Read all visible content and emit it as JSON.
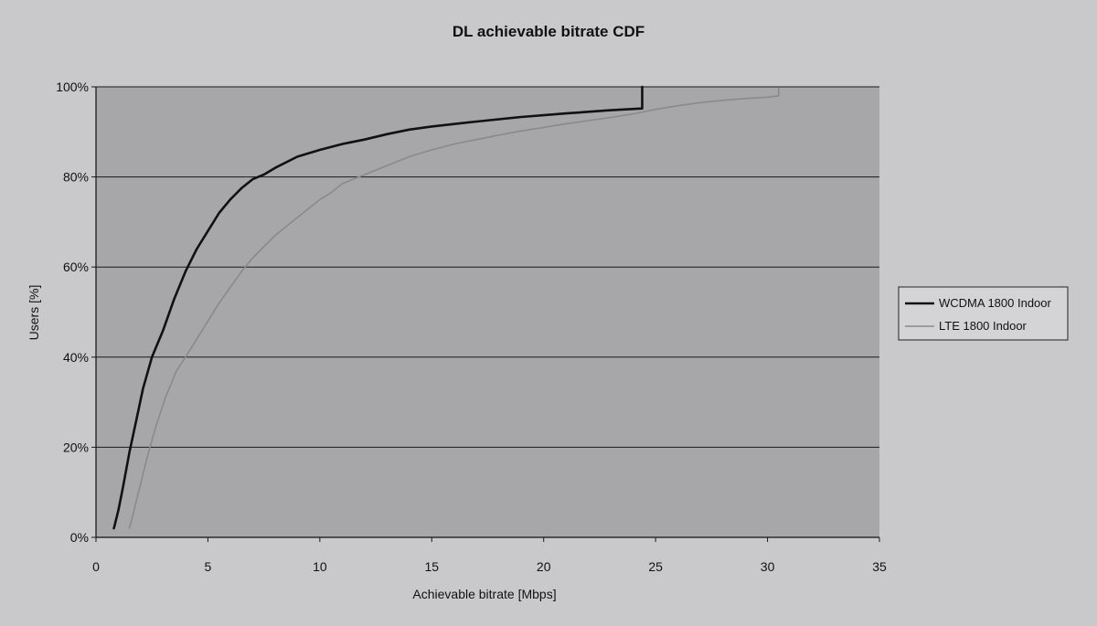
{
  "chart_data": {
    "type": "line",
    "title": "DL achievable bitrate CDF",
    "xlabel": "Achievable bitrate [Mbps]",
    "ylabel": "Users [%]",
    "xlim": [
      0,
      35
    ],
    "ylim": [
      0,
      100
    ],
    "xticks": [
      "0",
      "5",
      "10",
      "15",
      "20",
      "25",
      "30",
      "35"
    ],
    "xtick_values": [
      0,
      5,
      10,
      15,
      20,
      25,
      30,
      35
    ],
    "yticks": [
      "0%",
      "20%",
      "40%",
      "60%",
      "80%",
      "100%"
    ],
    "ytick_values": [
      0,
      20,
      40,
      60,
      80,
      100
    ],
    "grid": "horizontal",
    "legend_position": "right",
    "series": [
      {
        "name": "WCDMA 1800 Indoor",
        "color": "#111111",
        "width": 2.6,
        "points": [
          [
            0.8,
            2
          ],
          [
            1.0,
            6
          ],
          [
            1.2,
            11
          ],
          [
            1.5,
            19
          ],
          [
            1.8,
            26
          ],
          [
            2.1,
            33
          ],
          [
            2.5,
            40
          ],
          [
            3.0,
            46
          ],
          [
            3.5,
            53
          ],
          [
            4.0,
            59
          ],
          [
            4.5,
            64
          ],
          [
            5.0,
            68
          ],
          [
            5.5,
            72
          ],
          [
            6.0,
            75
          ],
          [
            6.5,
            77.5
          ],
          [
            7.0,
            79.5
          ],
          [
            7.5,
            80.5
          ],
          [
            8.0,
            82
          ],
          [
            9.0,
            84.5
          ],
          [
            10.0,
            86
          ],
          [
            11.0,
            87.3
          ],
          [
            12.0,
            88.3
          ],
          [
            13.0,
            89.5
          ],
          [
            14.0,
            90.5
          ],
          [
            15.0,
            91.2
          ],
          [
            17.0,
            92.3
          ],
          [
            19.0,
            93.3
          ],
          [
            21.0,
            94.1
          ],
          [
            23.0,
            94.8
          ],
          [
            24.4,
            95.2
          ],
          [
            24.4,
            100
          ]
        ]
      },
      {
        "name": "LTE 1800 Indoor",
        "color": "#8a8a8a",
        "width": 1.6,
        "points": [
          [
            1.5,
            2
          ],
          [
            1.7,
            6
          ],
          [
            2.0,
            12
          ],
          [
            2.3,
            18
          ],
          [
            2.7,
            25
          ],
          [
            3.1,
            31
          ],
          [
            3.6,
            37
          ],
          [
            4.0,
            40
          ],
          [
            4.5,
            44
          ],
          [
            5.0,
            48
          ],
          [
            5.5,
            52
          ],
          [
            6.0,
            55.5
          ],
          [
            6.5,
            59
          ],
          [
            7.0,
            62
          ],
          [
            7.5,
            64.5
          ],
          [
            8.0,
            67
          ],
          [
            8.5,
            69
          ],
          [
            9.0,
            71
          ],
          [
            9.5,
            73
          ],
          [
            10.0,
            75
          ],
          [
            10.5,
            76.5
          ],
          [
            11.0,
            78.5
          ],
          [
            12.0,
            80.5
          ],
          [
            13.0,
            82.5
          ],
          [
            14.0,
            84.5
          ],
          [
            15.0,
            86
          ],
          [
            16.0,
            87.3
          ],
          [
            17.0,
            88.3
          ],
          [
            18.0,
            89.3
          ],
          [
            19.0,
            90.2
          ],
          [
            20.0,
            91
          ],
          [
            21.0,
            91.8
          ],
          [
            22.0,
            92.5
          ],
          [
            23.0,
            93.2
          ],
          [
            24.0,
            94
          ],
          [
            25.0,
            95
          ],
          [
            26.0,
            95.8
          ],
          [
            27.0,
            96.5
          ],
          [
            28.0,
            97
          ],
          [
            29.0,
            97.4
          ],
          [
            30.0,
            97.7
          ],
          [
            30.5,
            98
          ],
          [
            30.5,
            99.8
          ]
        ]
      }
    ]
  }
}
